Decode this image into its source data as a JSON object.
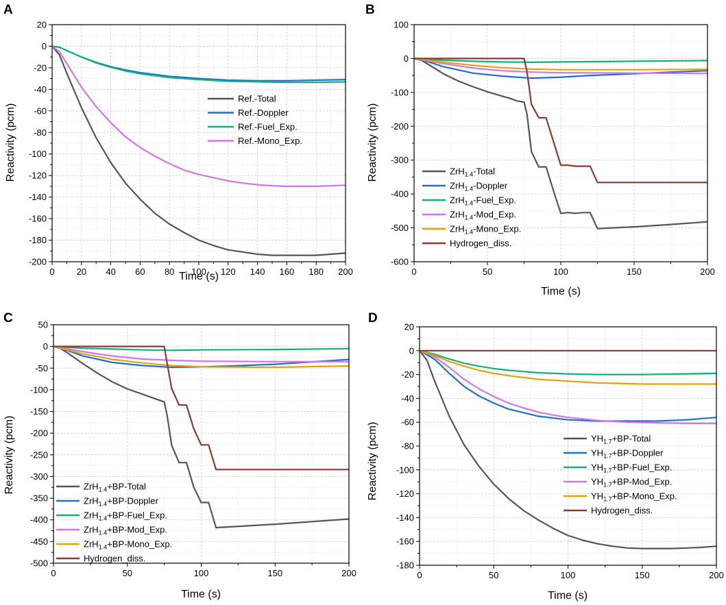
{
  "figure": {
    "colors": {
      "total": "#555555",
      "doppler": "#1f6fd1",
      "fuel": "#14b07a",
      "mod": "#d275e8",
      "mono": "#e3a20c",
      "hydrogen": "#8b3a34",
      "grid": "#cfcfcf",
      "axis": "#000000"
    }
  },
  "chart_data": [
    {
      "panel": "A",
      "type": "line",
      "xlabel": "Time (s)",
      "ylabel": "Reactivity (pcm)",
      "xlim": [
        0,
        200
      ],
      "ylim": [
        -200,
        20
      ],
      "xticks": [
        0,
        20,
        40,
        60,
        80,
        100,
        120,
        140,
        160,
        180,
        200
      ],
      "yticks": [
        20,
        0,
        -20,
        -40,
        -60,
        -80,
        -100,
        -120,
        -140,
        -160,
        -180,
        -200
      ],
      "legend": "right",
      "series": [
        {
          "name": "Ref.-Total",
          "color_key": "total",
          "x": [
            0,
            5,
            10,
            20,
            30,
            40,
            50,
            60,
            70,
            80,
            90,
            100,
            110,
            120,
            130,
            140,
            150,
            160,
            170,
            180,
            190,
            200
          ],
          "y": [
            0,
            -8,
            -25,
            -57,
            -85,
            -108,
            -127,
            -142,
            -155,
            -165,
            -173,
            -180,
            -185,
            -189,
            -191,
            -193,
            -194,
            -194,
            -194,
            -194,
            -193,
            -192
          ]
        },
        {
          "name": "Ref.-Doppler",
          "color_key": "doppler",
          "x": [
            0,
            5,
            10,
            20,
            30,
            40,
            50,
            60,
            80,
            100,
            120,
            140,
            160,
            180,
            200
          ],
          "y": [
            0,
            -1,
            -4,
            -10,
            -15,
            -19,
            -22,
            -24.5,
            -28,
            -30,
            -31.5,
            -32,
            -32,
            -31.5,
            -31
          ]
        },
        {
          "name": "Ref.-Fuel_Exp.",
          "color_key": "fuel",
          "x": [
            0,
            5,
            10,
            20,
            30,
            40,
            50,
            60,
            80,
            100,
            120,
            140,
            160,
            180,
            200
          ],
          "y": [
            0,
            -1,
            -4,
            -10,
            -15.5,
            -19.5,
            -23,
            -25.5,
            -29,
            -31,
            -32.5,
            -33,
            -33.5,
            -33.5,
            -33
          ]
        },
        {
          "name": "Ref.-Mono_Exp.",
          "color_key": "mod",
          "x": [
            0,
            5,
            10,
            20,
            30,
            40,
            50,
            60,
            70,
            80,
            90,
            100,
            110,
            120,
            130,
            140,
            150,
            160,
            170,
            180,
            190,
            200
          ],
          "y": [
            0,
            -5,
            -16,
            -38,
            -56,
            -71,
            -84,
            -94,
            -102,
            -109,
            -115,
            -119,
            -122,
            -125,
            -127,
            -128.5,
            -129.5,
            -130,
            -130,
            -130,
            -129.5,
            -129
          ]
        }
      ]
    },
    {
      "panel": "B",
      "type": "line",
      "xlabel": "Time (s)",
      "ylabel": "Reactivity (pcm)",
      "xlim": [
        0,
        200
      ],
      "ylim": [
        -600,
        100
      ],
      "xticks": [
        0,
        50,
        100,
        150,
        200
      ],
      "yticks": [
        100,
        0,
        -100,
        -200,
        -300,
        -400,
        -500,
        -600
      ],
      "legend": "bottom-left",
      "series": [
        {
          "name": "ZrH1.4-Total",
          "label_base": "ZrH",
          "label_sub": "1.4",
          "label_rest": "-Total",
          "color_key": "total",
          "x": [
            0,
            5,
            10,
            20,
            30,
            40,
            50,
            60,
            65,
            70,
            75,
            77,
            80,
            85,
            90,
            95,
            100,
            105,
            110,
            115,
            120,
            125,
            150,
            175,
            200
          ],
          "y": [
            0,
            -5,
            -18,
            -45,
            -66,
            -83,
            -98,
            -111,
            -117,
            -125,
            -129,
            -165,
            -275,
            -320,
            -320,
            -390,
            -457,
            -455,
            -457,
            -455,
            -455,
            -502,
            -497,
            -490,
            -482
          ]
        },
        {
          "name": "ZrH1.4-Doppler",
          "label_base": "ZrH",
          "label_sub": "1.4",
          "label_rest": "-Doppler",
          "color_key": "doppler",
          "x": [
            0,
            10,
            20,
            40,
            60,
            80,
            100,
            120,
            150,
            175,
            200
          ],
          "y": [
            0,
            -10,
            -24,
            -43,
            -52,
            -58,
            -55,
            -50,
            -45,
            -40,
            -36
          ]
        },
        {
          "name": "ZrH1.4-Fuel_Exp.",
          "label_base": "ZrH",
          "label_sub": "1.4",
          "label_rest": "-Fuel_Exp.",
          "color_key": "fuel",
          "x": [
            0,
            20,
            40,
            60,
            80,
            100,
            150,
            200
          ],
          "y": [
            0,
            -5,
            -8,
            -10,
            -11,
            -10,
            -8,
            -6
          ]
        },
        {
          "name": "ZrH1.4-Mod_Exp.",
          "label_base": "ZrH",
          "label_sub": "1.4",
          "label_rest": "-Mod_Exp.",
          "color_key": "mod",
          "x": [
            0,
            20,
            40,
            60,
            80,
            100,
            150,
            200
          ],
          "y": [
            0,
            -15,
            -28,
            -36,
            -40,
            -42,
            -43,
            -44
          ]
        },
        {
          "name": "ZrH1.4-Mono_Exp.",
          "label_base": "ZrH",
          "label_sub": "1.4",
          "label_rest": "-Mono_Exp.",
          "color_key": "mono",
          "x": [
            0,
            20,
            40,
            60,
            80,
            100,
            150,
            200
          ],
          "y": [
            0,
            -11,
            -20,
            -27,
            -31,
            -33,
            -33,
            -32
          ]
        },
        {
          "name": "Hydrogen_diss.",
          "label_base": "Hydrogen_diss.",
          "label_sub": "",
          "label_rest": "",
          "color_key": "hydrogen",
          "x": [
            0,
            75,
            77,
            80,
            85,
            90,
            95,
            100,
            105,
            110,
            115,
            120,
            125,
            150,
            200
          ],
          "y": [
            0,
            0,
            -40,
            -135,
            -175,
            -175,
            -245,
            -315,
            -315,
            -318,
            -318,
            -318,
            -366,
            -366,
            -366
          ]
        }
      ]
    },
    {
      "panel": "C",
      "type": "line",
      "xlabel": "Time (s)",
      "ylabel": "Reactivity (pcm)",
      "xlim": [
        0,
        200
      ],
      "ylim": [
        -500,
        50
      ],
      "xticks": [
        0,
        50,
        100,
        150,
        200
      ],
      "yticks": [
        50,
        0,
        -50,
        -100,
        -150,
        -200,
        -250,
        -300,
        -350,
        -400,
        -450,
        -500
      ],
      "legend": "bottom-left",
      "series": [
        {
          "name": "ZrH1.4+BP-Total",
          "label_base": "ZrH",
          "label_sub": "1.4",
          "label_rest": "+BP-Total",
          "color_key": "total",
          "x": [
            0,
            5,
            10,
            20,
            30,
            40,
            50,
            60,
            70,
            75,
            77,
            80,
            85,
            90,
            95,
            100,
            105,
            110,
            150,
            200
          ],
          "y": [
            0,
            -5,
            -16,
            -40,
            -62,
            -82,
            -98,
            -110,
            -122,
            -128,
            -160,
            -228,
            -268,
            -268,
            -325,
            -360,
            -360,
            -418,
            -410,
            -398
          ]
        },
        {
          "name": "ZrH1.4+BP-Doppler",
          "label_base": "ZrH",
          "label_sub": "1.4",
          "label_rest": "+BP-Doppler",
          "color_key": "doppler",
          "x": [
            0,
            10,
            20,
            40,
            60,
            80,
            100,
            120,
            150,
            200
          ],
          "y": [
            0,
            -10,
            -22,
            -37,
            -44,
            -48,
            -47,
            -45,
            -41,
            -30
          ]
        },
        {
          "name": "ZrH1.4+BP-Fuel_Exp.",
          "label_base": "ZrH",
          "label_sub": "1.4",
          "label_rest": "+BP-Fuel_Exp.",
          "color_key": "fuel",
          "x": [
            0,
            20,
            40,
            60,
            80,
            100,
            150,
            200
          ],
          "y": [
            0,
            -4,
            -6,
            -8,
            -9,
            -8,
            -7,
            -5
          ]
        },
        {
          "name": "ZrH1.4+BP-Mod_Exp.",
          "label_base": "ZrH",
          "label_sub": "1.4",
          "label_rest": "+BP-Mod_Exp.",
          "color_key": "mod",
          "x": [
            0,
            20,
            40,
            60,
            80,
            100,
            150,
            200
          ],
          "y": [
            0,
            -12,
            -22,
            -29,
            -32,
            -34,
            -35,
            -35
          ]
        },
        {
          "name": "ZrH1.4+BP-Mono_Exp.",
          "label_base": "ZrH",
          "label_sub": "1.4",
          "label_rest": "+BP-Mono_Exp.",
          "color_key": "mono",
          "x": [
            0,
            20,
            40,
            60,
            80,
            100,
            150,
            200
          ],
          "y": [
            0,
            -17,
            -30,
            -38,
            -44,
            -47,
            -48,
            -45
          ]
        },
        {
          "name": "Hydrogen_diss.",
          "label_base": "Hydrogen_diss.",
          "label_sub": "",
          "label_rest": "",
          "color_key": "hydrogen",
          "x": [
            0,
            75,
            77,
            80,
            85,
            90,
            95,
            100,
            105,
            110,
            150,
            200
          ],
          "y": [
            0,
            0,
            -40,
            -97,
            -135,
            -135,
            -190,
            -227,
            -227,
            -284,
            -284,
            -284
          ]
        }
      ]
    },
    {
      "panel": "D",
      "type": "line",
      "xlabel": "Time (s)",
      "ylabel": "Reactivity (pcm)",
      "xlim": [
        0,
        200
      ],
      "ylim": [
        -180,
        20
      ],
      "xticks": [
        0,
        50,
        100,
        150,
        200
      ],
      "yticks": [
        20,
        0,
        -20,
        -40,
        -60,
        -80,
        -100,
        -120,
        -140,
        -160,
        -180
      ],
      "legend": "right",
      "series": [
        {
          "name": "YH1.7+BP-Total",
          "label_base": "YH",
          "label_sub": "1.7",
          "label_rest": "+BP-Total",
          "color_key": "total",
          "x": [
            0,
            5,
            10,
            20,
            30,
            40,
            50,
            60,
            70,
            80,
            90,
            100,
            110,
            120,
            130,
            140,
            150,
            160,
            170,
            180,
            190,
            200
          ],
          "y": [
            0,
            -8,
            -25,
            -55,
            -79,
            -97,
            -112,
            -124,
            -134,
            -142,
            -149,
            -155,
            -159,
            -162,
            -164,
            -165.5,
            -166,
            -166,
            -166,
            -165.5,
            -165,
            -164
          ]
        },
        {
          "name": "YH1.7+BP-Doppler",
          "label_base": "YH",
          "label_sub": "1.7",
          "label_rest": "+BP-Doppler",
          "color_key": "doppler",
          "x": [
            0,
            10,
            20,
            30,
            40,
            50,
            60,
            80,
            100,
            120,
            140,
            160,
            180,
            200
          ],
          "y": [
            0,
            -7,
            -19,
            -30,
            -38,
            -44,
            -49,
            -55,
            -58,
            -59,
            -59,
            -59,
            -58,
            -56
          ]
        },
        {
          "name": "YH1.7+BP-Fuel_Exp.",
          "label_base": "YH",
          "label_sub": "1.7",
          "label_rest": "+BP-Fuel_Exp.",
          "color_key": "fuel",
          "x": [
            0,
            10,
            20,
            30,
            40,
            50,
            60,
            80,
            100,
            120,
            150,
            200
          ],
          "y": [
            0,
            -3,
            -7,
            -10.5,
            -13,
            -15,
            -16.5,
            -18.5,
            -19.5,
            -20,
            -20,
            -19
          ]
        },
        {
          "name": "YH1.7+BP-Mod_Exp.",
          "label_base": "YH",
          "label_sub": "1.7",
          "label_rest": "+BP-Mod_Exp.",
          "color_key": "mod",
          "x": [
            0,
            10,
            20,
            30,
            40,
            50,
            60,
            70,
            80,
            90,
            100,
            120,
            140,
            160,
            180,
            200
          ],
          "y": [
            0,
            -5,
            -14,
            -24,
            -32,
            -38.5,
            -44,
            -48,
            -51.5,
            -54,
            -56,
            -58.5,
            -60,
            -60.5,
            -61,
            -61
          ]
        },
        {
          "name": "YH1.7+BP-Mono_Exp.",
          "label_base": "YH",
          "label_sub": "1.7",
          "label_rest": "+BP-Mono_Exp.",
          "color_key": "mono",
          "x": [
            0,
            10,
            20,
            30,
            40,
            50,
            60,
            80,
            100,
            120,
            150,
            200
          ],
          "y": [
            0,
            -4,
            -9,
            -13,
            -16.5,
            -19,
            -21,
            -24,
            -25.5,
            -27,
            -28,
            -28
          ]
        },
        {
          "name": "Hydrogen_diss.",
          "label_base": "Hydrogen_diss.",
          "label_sub": "",
          "label_rest": "",
          "color_key": "hydrogen",
          "x": [
            0,
            200
          ],
          "y": [
            0,
            0
          ]
        }
      ]
    }
  ]
}
